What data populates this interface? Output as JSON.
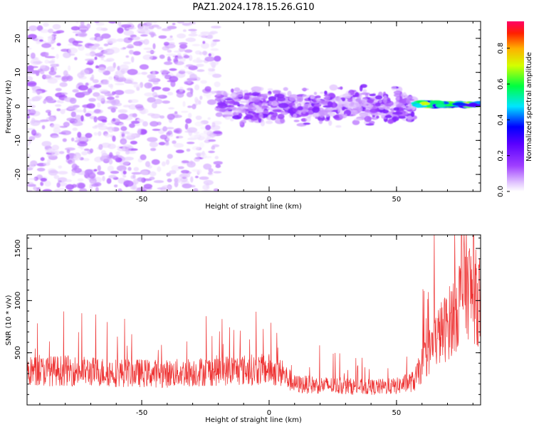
{
  "title": "PAZ1.2024.178.15.26.G10",
  "chart_data": [
    {
      "type": "heatmap",
      "xlabel": "Height of straight line (km)",
      "ylabel": "Frequency (Hz)",
      "xlim": [
        -95,
        83
      ],
      "ylim": [
        -25,
        25
      ],
      "x_ticks": [
        -50,
        0,
        50
      ],
      "y_ticks": [
        -20,
        -10,
        0,
        10,
        20
      ],
      "colorbar": {
        "label": "Normalized spectral amplitude",
        "range": [
          0,
          0.95
        ],
        "ticks": [
          0.0,
          0.2,
          0.4,
          0.6,
          0.8
        ],
        "colormap": "gist_rainbow_r"
      },
      "features": [
        {
          "x_range": [
            -95,
            -20
          ],
          "freq_range": [
            -25,
            25
          ],
          "amplitude": 0.08,
          "pattern": "scattered noise"
        },
        {
          "x_range": [
            -20,
            57
          ],
          "freq_range": [
            -5,
            5
          ],
          "amplitude": 0.12,
          "pattern": "band near 0 Hz"
        },
        {
          "x_range": [
            57,
            83
          ],
          "freq_range": [
            0,
            2
          ],
          "amplitude": 0.6,
          "pattern": "narrow strong line near 1 Hz"
        }
      ]
    },
    {
      "type": "line",
      "xlabel": "Height of straight line (km)",
      "ylabel": "SNR (10 * v/v)",
      "xlim": [
        -95,
        83
      ],
      "ylim": [
        0,
        1630
      ],
      "x_ticks": [
        -50,
        0,
        50
      ],
      "y_ticks": [
        500,
        1000,
        1500
      ],
      "color": "#ee3333",
      "series": [
        {
          "x": [
            -95,
            -80,
            -60,
            -40,
            -20,
            0,
            5,
            10,
            20,
            30,
            40,
            50,
            57,
            62,
            66,
            70,
            74,
            77,
            80,
            83
          ],
          "values": [
            320,
            330,
            310,
            300,
            330,
            340,
            300,
            200,
            190,
            180,
            170,
            180,
            230,
            480,
            650,
            760,
            950,
            1200,
            1050,
            1000
          ]
        }
      ]
    }
  ]
}
